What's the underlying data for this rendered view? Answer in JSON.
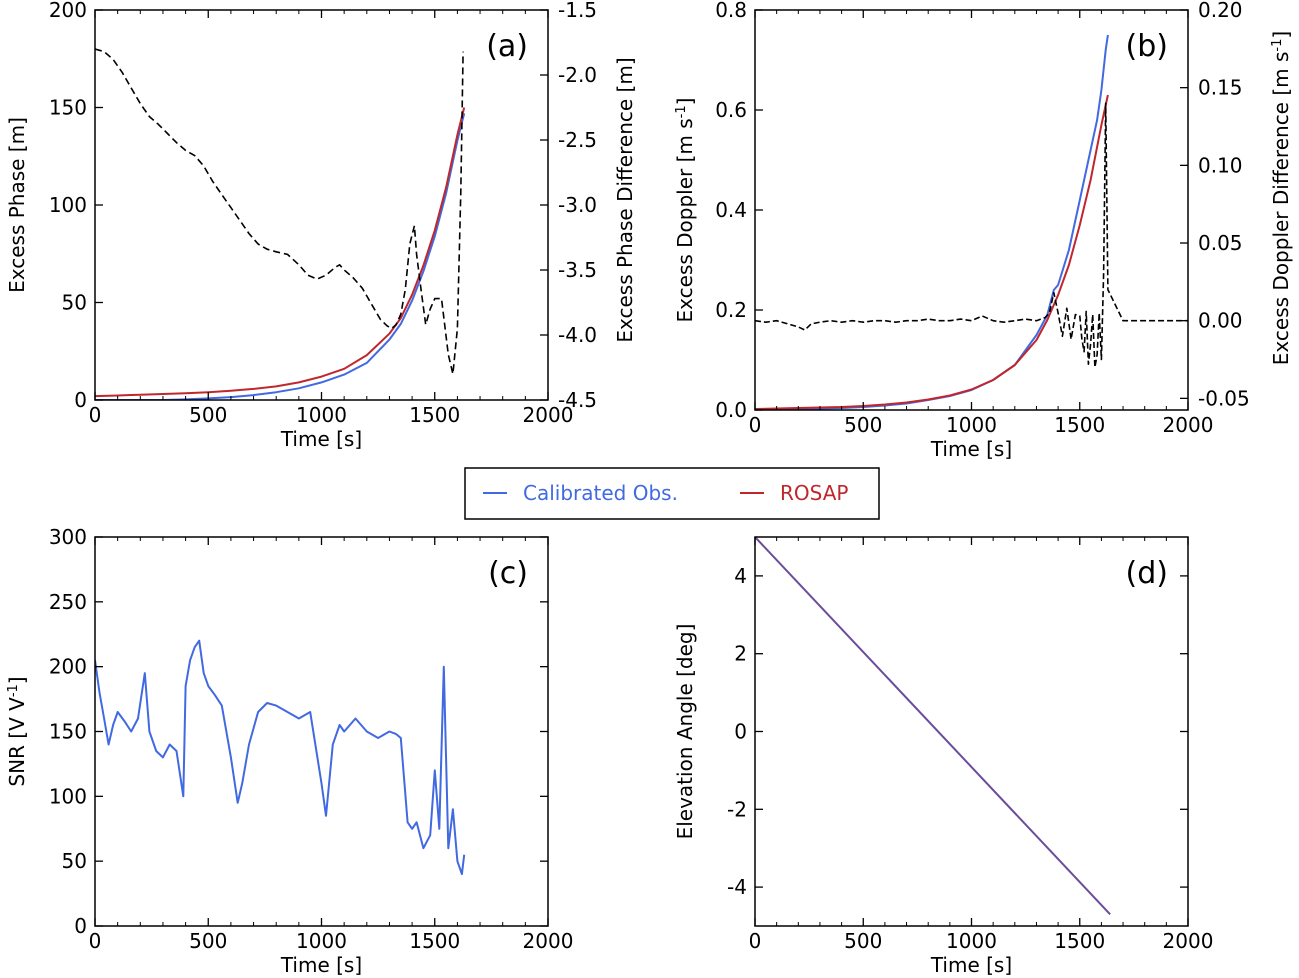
{
  "colors": {
    "calibrated": "#4169E1",
    "rosap": "#C0272D",
    "difference": "#000000",
    "elevation": "#6A4C9C"
  },
  "legend": {
    "entries": [
      {
        "label": "Calibrated Obs.",
        "color": "#4169E1"
      },
      {
        "label": "ROSAP",
        "color": "#C0272D"
      }
    ]
  },
  "chart_data": [
    {
      "id": "a",
      "type": "line",
      "panel_label": "(a)",
      "xlabel": "Time [s]",
      "ylabel": "Excess Phase [m]",
      "y2label": "Excess Phase Difference [m]",
      "xlim": [
        0,
        2000
      ],
      "ylim": [
        0,
        200
      ],
      "y2lim": [
        -4.5,
        -1.5
      ],
      "xticks": [
        0,
        500,
        1000,
        1500,
        2000
      ],
      "yticks": [
        0,
        50,
        100,
        150,
        200
      ],
      "y2ticks": [
        -4.5,
        -4.0,
        -3.5,
        -3.0,
        -2.5,
        -2.0,
        -1.5
      ],
      "series": [
        {
          "name": "Calibrated Obs.",
          "color": "#4169E1",
          "axis": "left",
          "x": [
            0,
            100,
            200,
            300,
            400,
            500,
            600,
            700,
            800,
            900,
            1000,
            1100,
            1200,
            1300,
            1350,
            1400,
            1450,
            1500,
            1550,
            1600,
            1630
          ],
          "y": [
            0,
            0,
            0,
            0,
            0.3,
            0.8,
            1.5,
            2.5,
            4,
            6,
            9,
            13,
            19,
            31,
            39,
            51,
            66,
            84,
            106,
            133,
            147
          ]
        },
        {
          "name": "ROSAP",
          "color": "#C0272D",
          "axis": "left",
          "x": [
            0,
            100,
            200,
            300,
            400,
            500,
            600,
            700,
            800,
            900,
            1000,
            1100,
            1200,
            1300,
            1350,
            1400,
            1450,
            1500,
            1550,
            1600,
            1630
          ],
          "y": [
            2,
            2.3,
            2.7,
            3.1,
            3.5,
            4,
            4.7,
            5.7,
            7,
            9,
            12,
            16,
            23,
            34,
            42,
            54,
            69,
            87,
            109,
            136,
            150
          ]
        },
        {
          "name": "Excess Phase Difference",
          "color": "#000000",
          "axis": "right",
          "dash": "7,4",
          "x": [
            0,
            40,
            80,
            120,
            160,
            200,
            240,
            280,
            320,
            360,
            400,
            440,
            480,
            520,
            560,
            600,
            640,
            680,
            720,
            760,
            800,
            850,
            900,
            940,
            980,
            1020,
            1060,
            1080,
            1100,
            1140,
            1180,
            1220,
            1260,
            1290,
            1310,
            1330,
            1350,
            1370,
            1390,
            1410,
            1420,
            1440,
            1460,
            1480,
            1500,
            1530,
            1560,
            1580,
            1600,
            1615,
            1625
          ],
          "y": [
            -1.8,
            -1.82,
            -1.88,
            -1.98,
            -2.1,
            -2.22,
            -2.32,
            -2.38,
            -2.45,
            -2.52,
            -2.58,
            -2.62,
            -2.7,
            -2.82,
            -2.92,
            -3.02,
            -3.12,
            -3.22,
            -3.3,
            -3.34,
            -3.36,
            -3.38,
            -3.46,
            -3.54,
            -3.57,
            -3.54,
            -3.48,
            -3.46,
            -3.5,
            -3.56,
            -3.64,
            -3.76,
            -3.88,
            -3.93,
            -3.95,
            -3.92,
            -3.84,
            -3.65,
            -3.3,
            -3.16,
            -3.38,
            -3.66,
            -3.92,
            -3.8,
            -3.72,
            -3.72,
            -4.15,
            -4.3,
            -3.95,
            -2.9,
            -1.82
          ]
        }
      ]
    },
    {
      "id": "b",
      "type": "line",
      "panel_label": "(b)",
      "xlabel": "Time [s]",
      "ylabel": "Excess Doppler [m s-1]",
      "y2label": "Excess Doppler Difference [m s-1]",
      "xlim": [
        0,
        2000
      ],
      "ylim": [
        0,
        0.8
      ],
      "y2lim": [
        -0.0575,
        0.2
      ],
      "xticks": [
        0,
        500,
        1000,
        1500,
        2000
      ],
      "yticks": [
        0.0,
        0.2,
        0.4,
        0.6,
        0.8
      ],
      "y2ticks": [
        -0.05,
        0.0,
        0.05,
        0.1,
        0.15,
        0.2
      ],
      "series": [
        {
          "name": "Calibrated Obs.",
          "color": "#4169E1",
          "axis": "left",
          "x": [
            0,
            100,
            200,
            300,
            400,
            500,
            600,
            700,
            800,
            900,
            1000,
            1100,
            1200,
            1300,
            1350,
            1380,
            1400,
            1450,
            1500,
            1550,
            1580,
            1600,
            1620,
            1630
          ],
          "y": [
            0,
            0.001,
            0.002,
            0.003,
            0.004,
            0.006,
            0.009,
            0.013,
            0.02,
            0.028,
            0.04,
            0.06,
            0.09,
            0.15,
            0.19,
            0.24,
            0.25,
            0.32,
            0.42,
            0.52,
            0.58,
            0.64,
            0.72,
            0.75
          ]
        },
        {
          "name": "ROSAP",
          "color": "#C0272D",
          "axis": "left",
          "x": [
            0,
            100,
            200,
            300,
            400,
            500,
            600,
            700,
            800,
            900,
            1000,
            1100,
            1200,
            1300,
            1350,
            1400,
            1450,
            1500,
            1550,
            1600,
            1630
          ],
          "y": [
            0.002,
            0.003,
            0.004,
            0.005,
            0.006,
            0.008,
            0.011,
            0.015,
            0.021,
            0.029,
            0.041,
            0.06,
            0.09,
            0.14,
            0.18,
            0.23,
            0.29,
            0.37,
            0.46,
            0.57,
            0.63
          ]
        },
        {
          "name": "Excess Doppler Difference",
          "color": "#000000",
          "axis": "right",
          "dash": "6,3",
          "x": [
            0,
            50,
            100,
            150,
            200,
            230,
            260,
            300,
            350,
            400,
            450,
            500,
            550,
            600,
            650,
            700,
            750,
            800,
            850,
            900,
            950,
            1000,
            1050,
            1100,
            1150,
            1200,
            1250,
            1300,
            1340,
            1360,
            1380,
            1400,
            1420,
            1440,
            1460,
            1480,
            1500,
            1510,
            1520,
            1530,
            1540,
            1550,
            1560,
            1570,
            1580,
            1590,
            1600,
            1610,
            1620,
            1630,
            1700,
            1800,
            1900,
            2000
          ],
          "y": [
            0.0,
            -0.001,
            0.0,
            -0.002,
            -0.004,
            -0.006,
            -0.002,
            -0.001,
            0.0,
            -0.001,
            0.0,
            -0.001,
            0.0,
            0.0,
            -0.001,
            0.0,
            0.0,
            0.001,
            0.0,
            0.0,
            0.001,
            0.0,
            0.003,
            0.0,
            -0.001,
            0.0,
            0.001,
            0.0,
            0.002,
            0.005,
            0.018,
            0.005,
            -0.01,
            0.008,
            -0.012,
            0.004,
            0.003,
            -0.012,
            -0.02,
            0.006,
            -0.028,
            -0.015,
            0.004,
            -0.03,
            -0.022,
            0.005,
            -0.025,
            0.03,
            0.14,
            0.02,
            0.0,
            0.0,
            0.0,
            0.0
          ]
        }
      ]
    },
    {
      "id": "c",
      "type": "line",
      "panel_label": "(c)",
      "xlabel": "Time [s]",
      "ylabel": "SNR [V V-1]",
      "xlim": [
        0,
        2000
      ],
      "ylim": [
        0,
        300
      ],
      "xticks": [
        0,
        500,
        1000,
        1500,
        2000
      ],
      "yticks": [
        0,
        50,
        100,
        150,
        200,
        250,
        300
      ],
      "series": [
        {
          "name": "Calibrated Obs.",
          "color": "#4169E1",
          "axis": "left",
          "x": [
            0,
            20,
            40,
            60,
            80,
            100,
            130,
            160,
            190,
            220,
            240,
            270,
            300,
            330,
            360,
            390,
            400,
            420,
            440,
            460,
            480,
            500,
            530,
            560,
            600,
            630,
            650,
            680,
            720,
            760,
            800,
            850,
            900,
            950,
            1000,
            1020,
            1050,
            1080,
            1100,
            1150,
            1200,
            1250,
            1300,
            1330,
            1350,
            1380,
            1400,
            1420,
            1450,
            1480,
            1500,
            1520,
            1540,
            1560,
            1580,
            1600,
            1620,
            1630
          ],
          "y": [
            205,
            180,
            160,
            140,
            155,
            165,
            158,
            150,
            160,
            195,
            150,
            135,
            130,
            140,
            135,
            100,
            185,
            205,
            215,
            220,
            195,
            185,
            178,
            170,
            130,
            95,
            110,
            140,
            165,
            172,
            170,
            165,
            160,
            165,
            110,
            85,
            140,
            155,
            150,
            160,
            150,
            145,
            150,
            148,
            145,
            80,
            75,
            80,
            60,
            70,
            120,
            75,
            200,
            60,
            90,
            50,
            40,
            55
          ]
        }
      ]
    },
    {
      "id": "d",
      "type": "line",
      "panel_label": "(d)",
      "xlabel": "Time [s]",
      "ylabel": "Elevation Angle [deg]",
      "xlim": [
        0,
        2000
      ],
      "ylim": [
        -5,
        5
      ],
      "xticks": [
        0,
        500,
        1000,
        1500,
        2000
      ],
      "yticks": [
        -4,
        -2,
        0,
        2,
        4
      ],
      "series": [
        {
          "name": "Elevation",
          "color": "#6A4C9C",
          "axis": "left",
          "x": [
            0,
            1640
          ],
          "y": [
            5,
            -4.7
          ]
        }
      ]
    }
  ]
}
